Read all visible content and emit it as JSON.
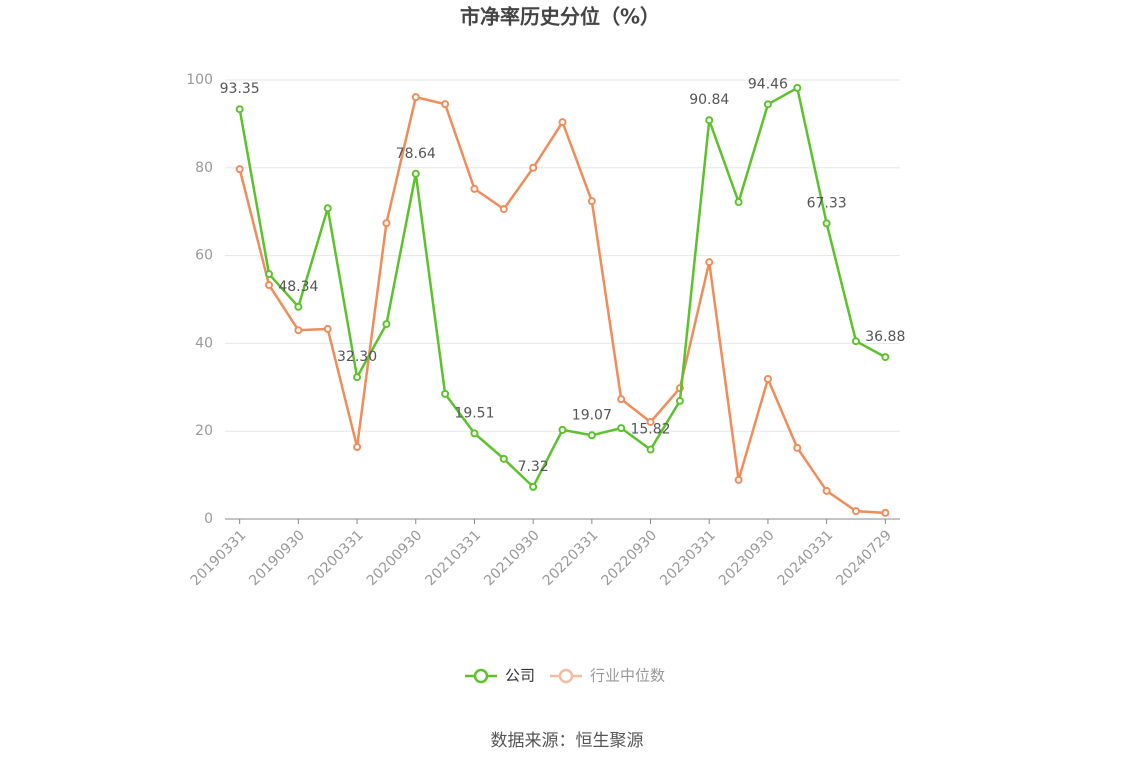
{
  "chart_data": {
    "type": "line",
    "title": "市净率历史分位（%）",
    "categories": [
      "20190331",
      null,
      "20190930",
      null,
      "20200331",
      null,
      "20200930",
      null,
      "20210331",
      null,
      "20210930",
      null,
      "20220331",
      null,
      "20220930",
      null,
      "20230331",
      null,
      "20230930",
      null,
      "20240331",
      null,
      "20240729"
    ],
    "series": [
      {
        "name": "公司",
        "color": "#5cc22b",
        "values": [
          93.35,
          55.8,
          48.34,
          70.8,
          32.3,
          44.4,
          78.64,
          28.5,
          19.51,
          13.7,
          7.32,
          20.3,
          19.07,
          20.7,
          15.82,
          26.9,
          90.84,
          72.2,
          94.46,
          98.2,
          67.33,
          40.5,
          36.88
        ],
        "value_labels": [
          "93.35",
          null,
          "48.34",
          null,
          "32.30",
          null,
          "78.64",
          null,
          "19.51",
          null,
          "7.32",
          null,
          "19.07",
          null,
          "15.82",
          null,
          "90.84",
          null,
          "94.46",
          null,
          "67.33",
          null,
          "36.88"
        ]
      },
      {
        "name": "行业中位数",
        "color": "#f08c5a",
        "values": [
          79.7,
          53.3,
          43.0,
          43.3,
          16.4,
          67.4,
          96.1,
          94.5,
          75.2,
          70.6,
          80.0,
          90.4,
          72.4,
          27.3,
          22.1,
          29.8,
          58.5,
          8.9,
          31.9,
          16.2,
          6.4,
          1.8,
          1.4
        ]
      }
    ],
    "ylim": [
      0,
      100
    ],
    "yticks": [
      0,
      20,
      40,
      60,
      80,
      100
    ],
    "grid": true,
    "source": "数据来源：恒生聚源"
  }
}
